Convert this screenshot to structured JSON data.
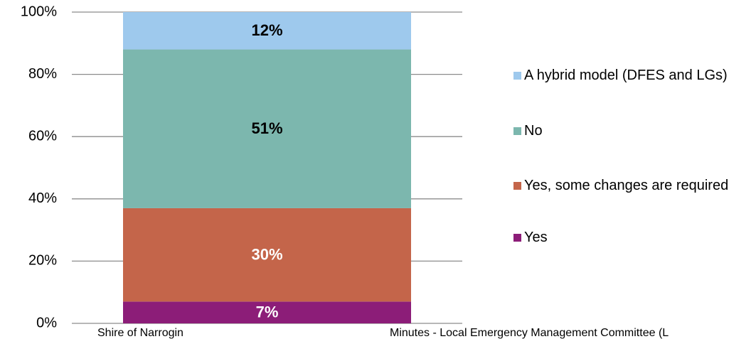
{
  "chart_data": {
    "type": "stacked_bar",
    "categories": [
      null
    ],
    "series": [
      {
        "name": "Yes",
        "color": "#8c1d78",
        "values": [
          7
        ],
        "value_labels": [
          "7%"
        ],
        "label_color": "#ffffff"
      },
      {
        "name": "Yes, some changes are required",
        "color": "#c4654a",
        "values": [
          30
        ],
        "value_labels": [
          "30%"
        ],
        "label_color": "#ffffff"
      },
      {
        "name": "No",
        "color": "#7cb7ae",
        "values": [
          51
        ],
        "value_labels": [
          "51%"
        ],
        "label_color": "#000000"
      },
      {
        "name": "A hybrid model (DFES and LGs)",
        "color": "#9ec9ed",
        "values": [
          12
        ],
        "value_labels": [
          "12%"
        ],
        "label_color": "#000000"
      }
    ],
    "ylim": [
      0,
      100
    ],
    "yticks": [
      {
        "value": 0,
        "label": "0%"
      },
      {
        "value": 20,
        "label": "20%"
      },
      {
        "value": 40,
        "label": "40%"
      },
      {
        "value": 60,
        "label": "60%"
      },
      {
        "value": 80,
        "label": "80%"
      },
      {
        "value": 100,
        "label": "100%"
      }
    ],
    "grid": true,
    "legend": "right"
  },
  "footer": {
    "left": "Shire of Narrogin",
    "right": "Minutes - Local Emergency Management Committee (L"
  }
}
